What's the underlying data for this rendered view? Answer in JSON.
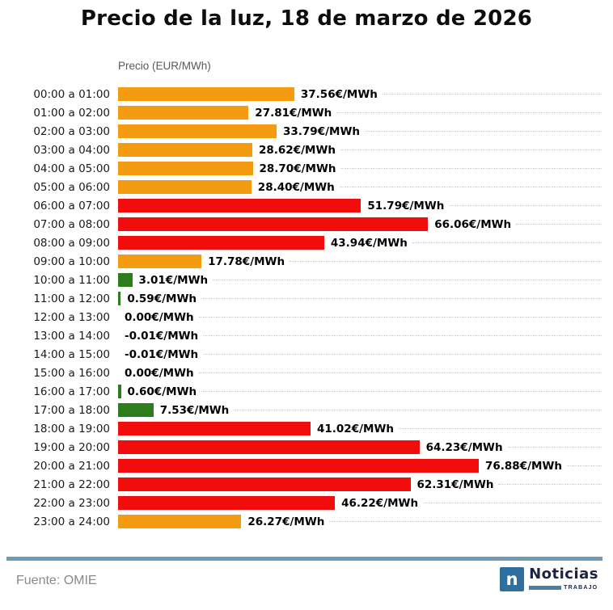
{
  "title": "Precio de la luz, 18 de marzo de 2026",
  "axis_label": "Precio (EUR/MWh)",
  "footer": {
    "source": "Fuente: OMIE"
  },
  "logo": {
    "icon_letter": "n",
    "brand": "Noticias",
    "sub": "TRABAJO"
  },
  "colors": {
    "orange": "#F39C12",
    "red": "#F20D0D",
    "green": "#2E7D1C",
    "divider": "#6D9BB8",
    "logo_square": "#2E6F9E",
    "logo_text": "#1B2340",
    "logo_bar": "#4D7FA6",
    "leader_dots": "#C9C9C9",
    "subtitle_gray": "#595959",
    "source_gray": "#8A8A8A"
  },
  "chart_data": {
    "type": "bar",
    "orientation": "horizontal",
    "title": "Precio de la luz, 18 de marzo de 2026",
    "value_axis_label": "Precio (EUR/MWh)",
    "unit": "€/MWh",
    "xlim": [
      0,
      80
    ],
    "grid": "dotted row leader lines",
    "source": "OMIE",
    "categories": [
      "00:00 a 01:00",
      "01:00 a 02:00",
      "02:00 a 03:00",
      "03:00 a 04:00",
      "04:00 a 05:00",
      "05:00 a 06:00",
      "06:00 a 07:00",
      "07:00 a 08:00",
      "08:00 a 09:00",
      "09:00 a 10:00",
      "10:00 a 11:00",
      "11:00 a 12:00",
      "12:00 a 13:00",
      "13:00 a 14:00",
      "14:00 a 15:00",
      "15:00 a 16:00",
      "16:00 a 17:00",
      "17:00 a 18:00",
      "18:00 a 19:00",
      "19:00 a 20:00",
      "20:00 a 21:00",
      "21:00 a 22:00",
      "22:00 a 23:00",
      "23:00 a 24:00"
    ],
    "values": [
      37.56,
      27.81,
      33.79,
      28.62,
      28.7,
      28.4,
      51.79,
      66.06,
      43.94,
      17.78,
      3.01,
      0.59,
      0.0,
      -0.01,
      -0.01,
      0.0,
      0.6,
      7.53,
      41.02,
      64.23,
      76.88,
      62.31,
      46.22,
      26.27
    ],
    "value_labels": [
      "37.56€/MWh",
      "27.81€/MWh",
      "33.79€/MWh",
      "28.62€/MWh",
      "28.70€/MWh",
      "28.40€/MWh",
      "51.79€/MWh",
      "66.06€/MWh",
      "43.94€/MWh",
      "17.78€/MWh",
      "3.01€/MWh",
      "0.59€/MWh",
      "0.00€/MWh",
      "-0.01€/MWh",
      "-0.01€/MWh",
      "0.00€/MWh",
      "0.60€/MWh",
      "7.53€/MWh",
      "41.02€/MWh",
      "64.23€/MWh",
      "76.88€/MWh",
      "62.31€/MWh",
      "46.22€/MWh",
      "26.27€/MWh"
    ],
    "bar_colors": [
      "orange",
      "orange",
      "orange",
      "orange",
      "orange",
      "orange",
      "red",
      "red",
      "red",
      "orange",
      "green",
      "green",
      "none",
      "none",
      "none",
      "none",
      "green",
      "green",
      "red",
      "red",
      "red",
      "red",
      "red",
      "orange"
    ]
  }
}
